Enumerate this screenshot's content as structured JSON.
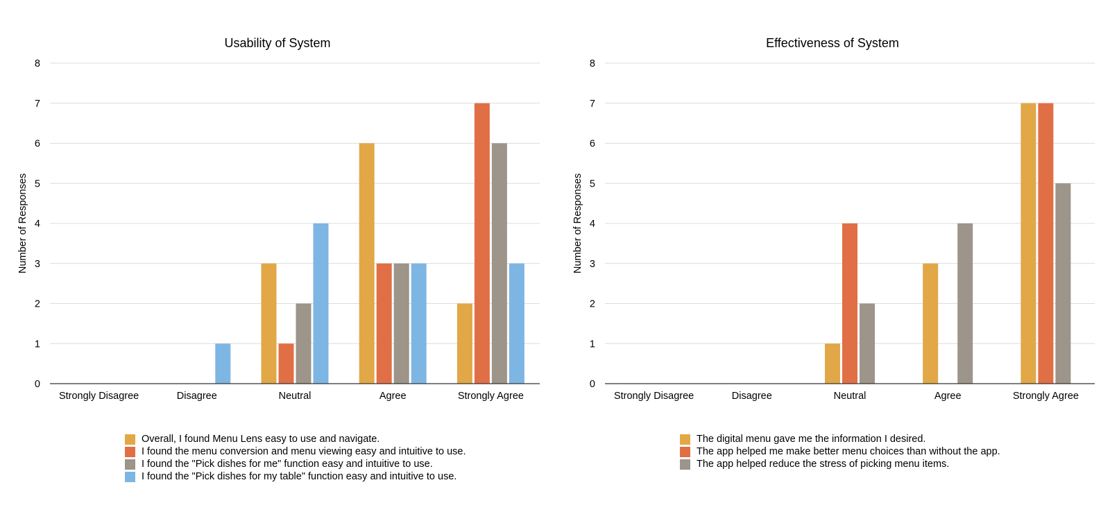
{
  "colors": {
    "gold": "#E2A746",
    "orange": "#E16F45",
    "gray": "#9D948A",
    "blue": "#7EB6E3",
    "gridline": "#dcdcdc",
    "axis": "#333333"
  },
  "chart_data": [
    {
      "type": "bar",
      "title": "Usability of System",
      "xlabel": "",
      "ylabel": "Number of Responses",
      "ylim": [
        0,
        8
      ],
      "yticks": [
        "0",
        "1",
        "2",
        "3",
        "4",
        "5",
        "6",
        "7",
        "8"
      ],
      "grid": true,
      "legend_position": "bottom",
      "categories": [
        "Strongly Disagree",
        "Disagree",
        "Neutral",
        "Agree",
        "Strongly Agree"
      ],
      "series": [
        {
          "name": "Overall, I found Menu Lens easy to use and navigate.",
          "color": "#E2A746",
          "values": [
            0,
            0,
            3,
            6,
            2
          ]
        },
        {
          "name": "I found the menu conversion and menu viewing easy and intuitive to use.",
          "color": "#E16F45",
          "values": [
            0,
            0,
            1,
            3,
            7
          ]
        },
        {
          "name": "I found the \"Pick dishes for me\" function easy and intuitive to use.",
          "color": "#9D948A",
          "values": [
            0,
            0,
            2,
            3,
            6
          ]
        },
        {
          "name": "I found the \"Pick dishes for my table\" function easy and intuitive to use.",
          "color": "#7EB6E3",
          "values": [
            0,
            1,
            4,
            3,
            3
          ]
        }
      ]
    },
    {
      "type": "bar",
      "title": "Effectiveness of System",
      "xlabel": "",
      "ylabel": "Number of Responses",
      "ylim": [
        0,
        8
      ],
      "yticks": [
        "0",
        "1",
        "2",
        "3",
        "4",
        "5",
        "6",
        "7",
        "8"
      ],
      "grid": true,
      "legend_position": "bottom",
      "categories": [
        "Strongly Disagree",
        "Disagree",
        "Neutral",
        "Agree",
        "Strongly Agree"
      ],
      "series": [
        {
          "name": "The digital menu gave me the information I desired.",
          "color": "#E2A746",
          "values": [
            0,
            0,
            1,
            3,
            7
          ]
        },
        {
          "name": "The app helped me make better menu choices than without the app.",
          "color": "#E16F45",
          "values": [
            0,
            0,
            4,
            0,
            7
          ]
        },
        {
          "name": "The app helped reduce the stress of picking menu items.",
          "color": "#9D948A",
          "values": [
            0,
            0,
            2,
            4,
            5
          ]
        }
      ]
    }
  ]
}
